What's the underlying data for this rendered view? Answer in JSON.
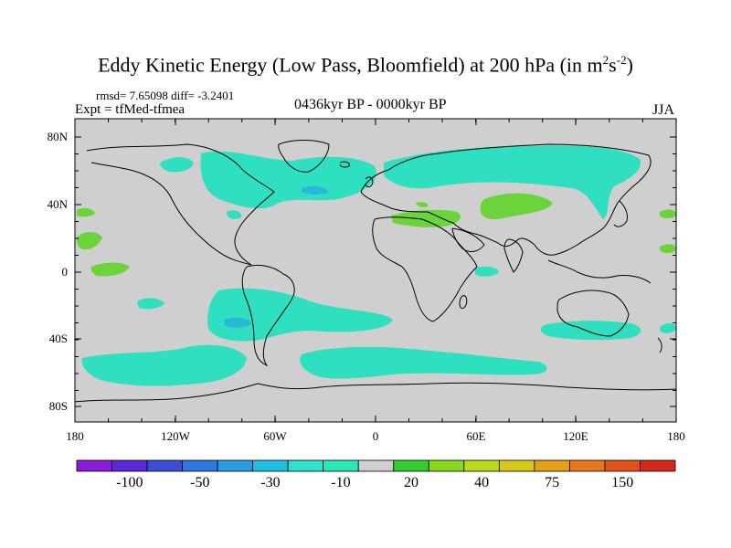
{
  "title": "Eddy Kinetic Energy (Low Pass, Bloomfield) at 200 hPa (in m",
  "title_units_sup1": "2",
  "title_units_mid": "s",
  "title_units_sup2": "-2",
  "title_units_end": ")",
  "stats_text": "rmsd= 7.65098 diff= -3.2401",
  "expt_text": "Expt = tfMed-tfmea",
  "period_text": "0436kyr BP - 0000kyr BP",
  "season_text": "JJA",
  "lat_labels": [
    "80N",
    "40N",
    "0",
    "40S",
    "80S"
  ],
  "lon_labels": [
    "180",
    "120W",
    "60W",
    "0",
    "60E",
    "120E",
    "180"
  ],
  "colorbar": {
    "colors": [
      "#8a1bd6",
      "#5a2ad8",
      "#3a4fd8",
      "#2f78e0",
      "#2b9be2",
      "#22c0e0",
      "#2ee0d0",
      "#2ce8b8",
      "#cfcfcf",
      "#33cc33",
      "#86d81a",
      "#b7dc1a",
      "#d8c81a",
      "#e6a11a",
      "#e6771a",
      "#e0521a",
      "#d8281a"
    ],
    "labels": [
      "-100",
      "-50",
      "-30",
      "-10",
      "20",
      "40",
      "75",
      "150"
    ]
  },
  "map": {
    "background_color": "#cfcfcf",
    "negative_fill_color": "#2ee0c0",
    "negative_strong_color": "#2bb8d8",
    "positive_fill_color": "#6ad43a"
  }
}
